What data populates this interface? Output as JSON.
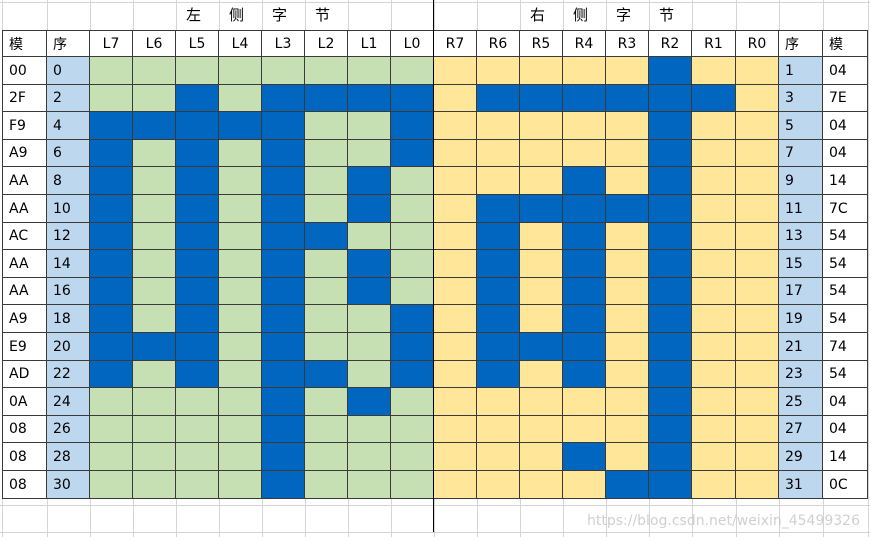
{
  "titles": {
    "left": [
      "左",
      "侧",
      "字",
      "节"
    ],
    "right": [
      "右",
      "侧",
      "字",
      "节"
    ]
  },
  "headers": [
    "模",
    "序",
    "L7",
    "L6",
    "L5",
    "L4",
    "L3",
    "L2",
    "L1",
    "L0",
    "R7",
    "R6",
    "R5",
    "R4",
    "R3",
    "R2",
    "R1",
    "R0",
    "序",
    "模"
  ],
  "rows": [
    {
      "lmod": "00",
      "lseq": "0",
      "bits": "0000000000000100",
      "rseq": "1",
      "rmod": "04"
    },
    {
      "lmod": "2F",
      "lseq": "2",
      "bits": "0010111101111110",
      "rseq": "3",
      "rmod": "7E"
    },
    {
      "lmod": "F9",
      "lseq": "4",
      "bits": "1111100100000100",
      "rseq": "5",
      "rmod": "04"
    },
    {
      "lmod": "A9",
      "lseq": "6",
      "bits": "1010100100000100",
      "rseq": "7",
      "rmod": "04"
    },
    {
      "lmod": "AA",
      "lseq": "8",
      "bits": "1010101000010100",
      "rseq": "9",
      "rmod": "14"
    },
    {
      "lmod": "AA",
      "lseq": "10",
      "bits": "1010101001111100",
      "rseq": "11",
      "rmod": "7C"
    },
    {
      "lmod": "AC",
      "lseq": "12",
      "bits": "1010110001010100",
      "rseq": "13",
      "rmod": "54"
    },
    {
      "lmod": "AA",
      "lseq": "14",
      "bits": "1010101001010100",
      "rseq": "15",
      "rmod": "54"
    },
    {
      "lmod": "AA",
      "lseq": "16",
      "bits": "1010101001010100",
      "rseq": "17",
      "rmod": "54"
    },
    {
      "lmod": "A9",
      "lseq": "18",
      "bits": "1010100101010100",
      "rseq": "19",
      "rmod": "54"
    },
    {
      "lmod": "E9",
      "lseq": "20",
      "bits": "1110100101110100",
      "rseq": "21",
      "rmod": "74"
    },
    {
      "lmod": "AD",
      "lseq": "22",
      "bits": "1010110101010100",
      "rseq": "23",
      "rmod": "54"
    },
    {
      "lmod": "0A",
      "lseq": "24",
      "bits": "0000101000000100",
      "rseq": "25",
      "rmod": "04"
    },
    {
      "lmod": "08",
      "lseq": "26",
      "bits": "0000100000000100",
      "rseq": "27",
      "rmod": "04"
    },
    {
      "lmod": "08",
      "lseq": "28",
      "bits": "0000100000010100",
      "rseq": "29",
      "rmod": "14"
    },
    {
      "lmod": "08",
      "lseq": "30",
      "bits": "0000100000001100",
      "rseq": "31",
      "rmod": "0C"
    }
  ],
  "colors": {
    "on": "#0066c0",
    "left_off": "#c6e0b4",
    "right_off": "#ffe699",
    "seq_fill": "#bdd7ee",
    "plain": "#ffffff"
  },
  "watermark": "https://blog.csdn.net/weixin_45499326"
}
